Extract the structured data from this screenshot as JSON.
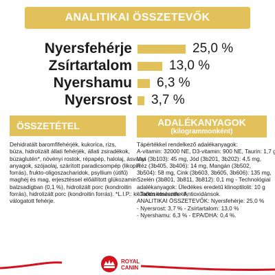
{
  "header": {
    "title": "ANALITIKAI ÖSSZETEVŐK"
  },
  "nutrients": [
    {
      "label": "Nyersfehérje",
      "value": "25,0 %",
      "level": 25.0
    },
    {
      "label": "Zsírtartalom",
      "value": "13,0 %",
      "level": 13.0
    },
    {
      "label": "Nyershamu",
      "value": "6,3 %",
      "level": 6.3
    },
    {
      "label": "Nyersrost",
      "value": "3,7 %",
      "level": 3.7
    }
  ],
  "composition": {
    "title": "ÖSSZETÉTEL",
    "lines": [
      "Dehidratált baromfifehérjék, kukorica, rizs,",
      "búza, hidrolizált állati fehérjék, állati zsiradékok,",
      "búzaglutén*, növényi rostok, répapép, halolaj, ásványi",
      "anyagok, szójaolaj, szárított paradicsompép (likopin",
      "forrás), frukto-oligoszacharidok, psyllium (útifű)",
      "maghéj és mag, erjesztéssel előállított glükozamin",
      "balzsadigban (0,1 %), hidrolizált porc (kondroitin",
      "forrás), hidrolizált porc (kondroitin forrás). *L.I.P.: kitűnően emészthető,",
      "válogatott fehérje."
    ]
  },
  "additives": {
    "title": "ADALÉKANYAGOK",
    "subtitle": "(kilogrammonként)",
    "lines": [
      "Tápértékkel rendelkező adalékanyagok:",
      "A-vitamin: 32000 NE, D3-vitamin: 900 NE, Taurin: 1,7 g,",
      "Vas (3b103): 45 mg, Jód (3b201, 3b202): 4,5 mg,",
      "Réz (3b405, 3b406): 14 mg, Mangán (3b502,",
      "3b504): 58 mg, Cink (3b603, 3b605, 3b606): 135 mg,",
      "Szelén (3b801, 3b811, 3b812): 0,1 mg - Technológiai",
      "adalékanyagok: Üledékes eredetű klinoptilolit: 10 g",
      "- Tartósítószerek - Antioxidánsok.",
      "ANALITIKAI ÖSSZETEVŐK: Nyersfehérje: 25,0 %",
      "- Nyersrost: 3,7 % - Zsírtartalom: 13,0 %",
      "- Nyershamu: 6,3 % - EPA/DHA: 0,4 %."
    ]
  },
  "brand": {
    "logo_text": "ROYAL CANIN",
    "accent": "#e3c15a",
    "red": "#d4121e"
  }
}
